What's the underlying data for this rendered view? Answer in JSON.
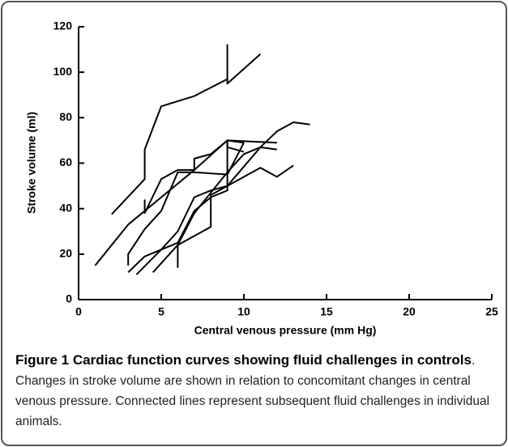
{
  "chart_data": {
    "type": "line",
    "xlabel": "Central venous pressure (mm Hg)",
    "ylabel": "Stroke volume (ml)",
    "color": "#000000",
    "xlim": [
      0,
      25
    ],
    "xticks": [
      0,
      5,
      10,
      15,
      20,
      25
    ],
    "ylim": [
      0,
      120
    ],
    "yticks": [
      0,
      20,
      40,
      60,
      80,
      100,
      120
    ],
    "series": [
      {
        "x": [
          2,
          4,
          4,
          5,
          7,
          9,
          9,
          9,
          11
        ],
        "values": [
          37.5,
          53,
          66,
          85,
          89.5,
          97,
          112,
          95,
          108
        ]
      },
      {
        "x": [
          1,
          3,
          5,
          7,
          9,
          12
        ],
        "values": [
          15,
          33,
          45,
          57,
          70,
          69
        ]
      },
      {
        "x": [
          3,
          3,
          4,
          5,
          6,
          7,
          9,
          10
        ],
        "values": [
          15,
          20,
          31,
          39,
          56,
          56,
          55,
          69
        ]
      },
      {
        "x": [
          3,
          4,
          6,
          7,
          8,
          9,
          9,
          10
        ],
        "values": [
          12,
          19,
          25,
          39,
          45,
          48,
          70,
          69
        ]
      },
      {
        "x": [
          4,
          4,
          5,
          6,
          7,
          7,
          8,
          9,
          9,
          10
        ],
        "values": [
          44,
          38,
          53,
          57,
          57,
          62,
          64,
          70,
          67,
          65
        ]
      },
      {
        "x": [
          3.5,
          5,
          6,
          7,
          8,
          9,
          11,
          12,
          13
        ],
        "values": [
          11,
          22,
          30,
          45,
          48,
          50,
          58,
          54,
          59
        ]
      },
      {
        "x": [
          6,
          6,
          8,
          8,
          9,
          11,
          12,
          13,
          14
        ],
        "values": [
          14,
          24,
          32,
          46,
          50,
          67,
          74,
          78,
          77
        ]
      },
      {
        "x": [
          4.5,
          6,
          7,
          8,
          9,
          10,
          11,
          12
        ],
        "values": [
          12,
          24,
          38,
          47,
          56,
          64,
          67,
          66
        ]
      }
    ]
  },
  "caption": {
    "title": "Figure 1 Cardiac function curves showing fluid challenges in controls",
    "text": ". Changes in stroke volume are shown in relation to concomitant changes in central venous pressure. Connected lines represent subsequent fluid challenges in individual animals."
  }
}
